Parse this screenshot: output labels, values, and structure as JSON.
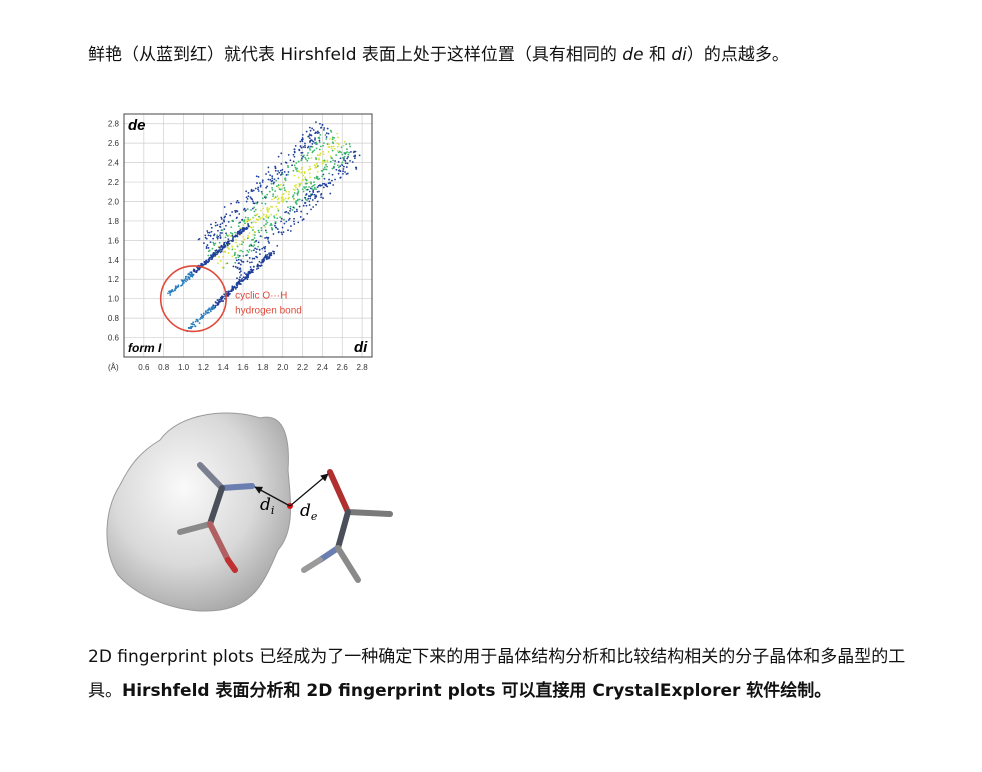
{
  "para1": {
    "t1": "鲜艳（从蓝到红）就代表 Hirshfeld 表面上处于这样位置（具有相同的 ",
    "de": "de",
    "t2": " 和 ",
    "di": "di",
    "t3": "）的点越多。"
  },
  "para2": {
    "t1": "2D fingerprint plots 已经成为了一种确定下来的用于晶体结构分析和比较结构相关的分子晶体和多晶型的工具。",
    "t2": "Hirshfeld 表面分析和 2D fingerprint plots 可以直接用 CrystalExplorer 软件绘制。"
  },
  "chart_data": {
    "type": "scatter",
    "xlabel": "di",
    "ylabel": "de",
    "x_ticks": [
      "0.6",
      "0.8",
      "1.0",
      "1.2",
      "1.4",
      "1.6",
      "1.8",
      "2.0",
      "2.2",
      "2.4",
      "2.6",
      "2.8"
    ],
    "y_ticks": [
      "0.6",
      "0.8",
      "1.0",
      "1.2",
      "1.4",
      "1.6",
      "1.8",
      "2.0",
      "2.2",
      "2.4",
      "2.6",
      "2.8"
    ],
    "xlim": [
      0.4,
      2.9
    ],
    "ylim": [
      0.4,
      2.9
    ],
    "panel_label": "form I",
    "unit_label": "(Å)",
    "annotation": [
      "cyclic O···H",
      "hydrogen bond"
    ],
    "highlight_circle": {
      "cx": 1.1,
      "cy": 1.0,
      "r": 0.33,
      "color": "#e04a3a"
    },
    "grid": true
  },
  "figure2": {
    "label_di": "d",
    "label_di_sub": "i",
    "label_de": "d",
    "label_de_sub": "e"
  }
}
